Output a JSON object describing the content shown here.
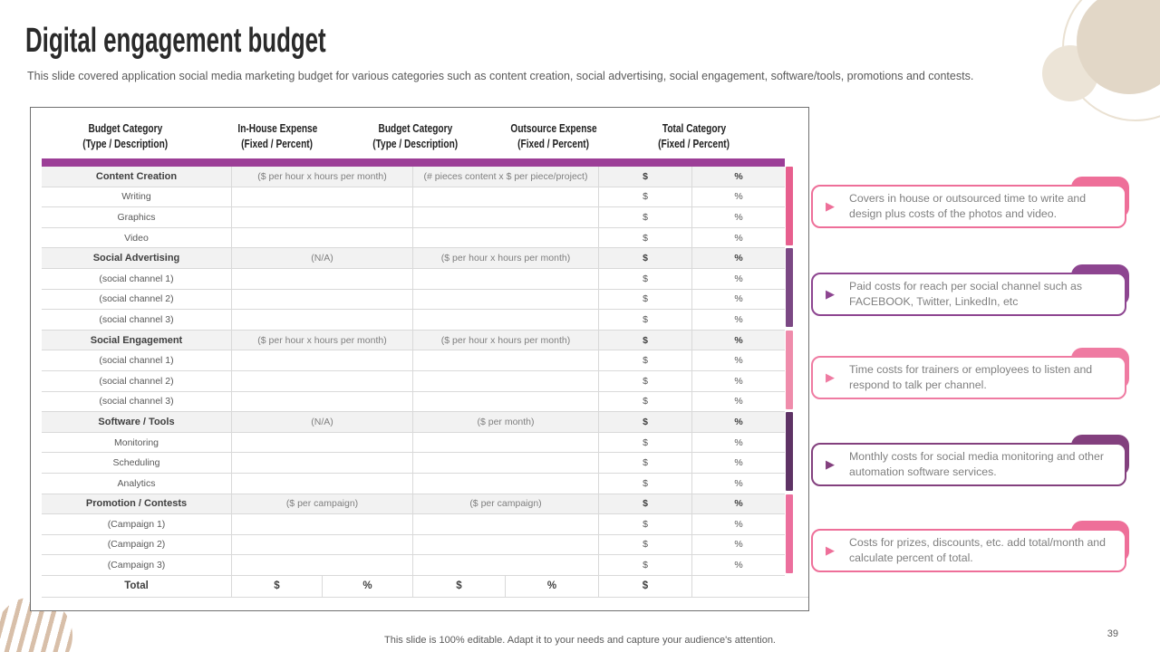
{
  "slide": {
    "title": "Digital engagement budget",
    "subtitle": "This slide covered application social media marketing budget for various categories such as content creation, social advertising, social engagement, software/tools, promotions and contests.",
    "footer": "This slide is 100% editable. Adapt it to your needs and capture your audience's attention.",
    "page_number": "39"
  },
  "colors": {
    "header_bar": "#9c3e97",
    "row_border": "#d9d9d9",
    "section_bg": "#f2f2f2",
    "beige_solid": "#e2d7c7",
    "beige_light": "#ece4d7",
    "beige_ring": "#eae1d2",
    "stripe": "#d8bfa9"
  },
  "table": {
    "headers": [
      {
        "line1": "Budget Category",
        "line2": "(Type / Description)"
      },
      {
        "line1": "In-House Expense",
        "line2": "(Fixed / Percent)"
      },
      {
        "line1": "Budget Category",
        "line2": "(Type / Description)"
      },
      {
        "line1": "Outsource Expense",
        "line2": "(Fixed / Percent)"
      },
      {
        "line1": "Total Category",
        "line2": "(Fixed / Percent)"
      }
    ],
    "rows": [
      {
        "type": "section",
        "category": "Content Creation",
        "inhouse": "($ per hour x hours per month)",
        "outsource": "(# pieces content x $ per piece/project)",
        "total_fixed": "$",
        "total_percent": "%"
      },
      {
        "type": "item",
        "category": "Writing",
        "inhouse": "",
        "outsource": "",
        "total_fixed": "$",
        "total_percent": "%"
      },
      {
        "type": "item",
        "category": "Graphics",
        "inhouse": "",
        "outsource": "",
        "total_fixed": "$",
        "total_percent": "%"
      },
      {
        "type": "item",
        "category": "Video",
        "inhouse": "",
        "outsource": "",
        "total_fixed": "$",
        "total_percent": "%"
      },
      {
        "type": "section",
        "category": "Social Advertising",
        "inhouse": "(N/A)",
        "outsource": "($ per hour x hours per month)",
        "total_fixed": "$",
        "total_percent": "%"
      },
      {
        "type": "item",
        "category": "(social channel 1)",
        "inhouse": "",
        "outsource": "",
        "total_fixed": "$",
        "total_percent": "%"
      },
      {
        "type": "item",
        "category": "(social channel 2)",
        "inhouse": "",
        "outsource": "",
        "total_fixed": "$",
        "total_percent": "%"
      },
      {
        "type": "item",
        "category": "(social channel 3)",
        "inhouse": "",
        "outsource": "",
        "total_fixed": "$",
        "total_percent": "%"
      },
      {
        "type": "section",
        "category": "Social Engagement",
        "inhouse": "($ per hour x hours per month)",
        "outsource": "($ per hour x hours per month)",
        "total_fixed": "$",
        "total_percent": "%"
      },
      {
        "type": "item",
        "category": "(social channel 1)",
        "inhouse": "",
        "outsource": "",
        "total_fixed": "$",
        "total_percent": "%"
      },
      {
        "type": "item",
        "category": "(social channel 2)",
        "inhouse": "",
        "outsource": "",
        "total_fixed": "$",
        "total_percent": "%"
      },
      {
        "type": "item",
        "category": "(social channel 3)",
        "inhouse": "",
        "outsource": "",
        "total_fixed": "$",
        "total_percent": "%"
      },
      {
        "type": "section",
        "category": "Software / Tools",
        "inhouse": "(N/A)",
        "outsource": "($ per month)",
        "total_fixed": "$",
        "total_percent": "%"
      },
      {
        "type": "item",
        "category": "Monitoring",
        "inhouse": "",
        "outsource": "",
        "total_fixed": "$",
        "total_percent": "%"
      },
      {
        "type": "item",
        "category": "Scheduling",
        "inhouse": "",
        "outsource": "",
        "total_fixed": "$",
        "total_percent": "%"
      },
      {
        "type": "item",
        "category": "Analytics",
        "inhouse": "",
        "outsource": "",
        "total_fixed": "$",
        "total_percent": "%"
      },
      {
        "type": "section",
        "category": "Promotion / Contests",
        "inhouse": "($ per campaign)",
        "outsource": "($ per campaign)",
        "total_fixed": "$",
        "total_percent": "%"
      },
      {
        "type": "item",
        "category": "(Campaign 1)",
        "inhouse": "",
        "outsource": "",
        "total_fixed": "$",
        "total_percent": "%"
      },
      {
        "type": "item",
        "category": "(Campaign 2)",
        "inhouse": "",
        "outsource": "",
        "total_fixed": "$",
        "total_percent": "%"
      },
      {
        "type": "item",
        "category": "(Campaign 3)",
        "inhouse": "",
        "outsource": "",
        "total_fixed": "$",
        "total_percent": "%"
      }
    ],
    "total_row": {
      "label": "Total",
      "inhouse_fixed": "$",
      "inhouse_percent": "%",
      "outsource_fixed": "$",
      "outsource_percent": "%",
      "total_fixed": "$",
      "total_percent": ""
    },
    "section_bars": [
      {
        "section": "content-creation",
        "color": "#e75f8e"
      },
      {
        "section": "social-advertising",
        "color": "#7b4884"
      },
      {
        "section": "social-engagement",
        "color": "#ef8cab"
      },
      {
        "section": "software-tools",
        "color": "#5e3365"
      },
      {
        "section": "promotion-contests",
        "color": "#ec6f9d"
      }
    ]
  },
  "callouts": [
    {
      "icon": "play-arrow-icon",
      "accent": "#ee6f99",
      "text": "Covers in house or outsourced time to write and design plus costs of the photos and video."
    },
    {
      "icon": "play-arrow-icon",
      "accent": "#8d4590",
      "text": "Paid costs for reach per social channel such as FACEBOOK, Twitter, LinkedIn, etc"
    },
    {
      "icon": "play-arrow-icon",
      "accent": "#ef7ba2",
      "text": "Time costs for trainers or employees to listen and respond to talk per channel."
    },
    {
      "icon": "play-arrow-icon",
      "accent": "#83407e",
      "text": "Monthly costs for social media monitoring and other automation software services."
    },
    {
      "icon": "play-arrow-icon",
      "accent": "#ee6f99",
      "text": "Costs for prizes, discounts, etc. add total/month and calculate percent of total."
    }
  ]
}
